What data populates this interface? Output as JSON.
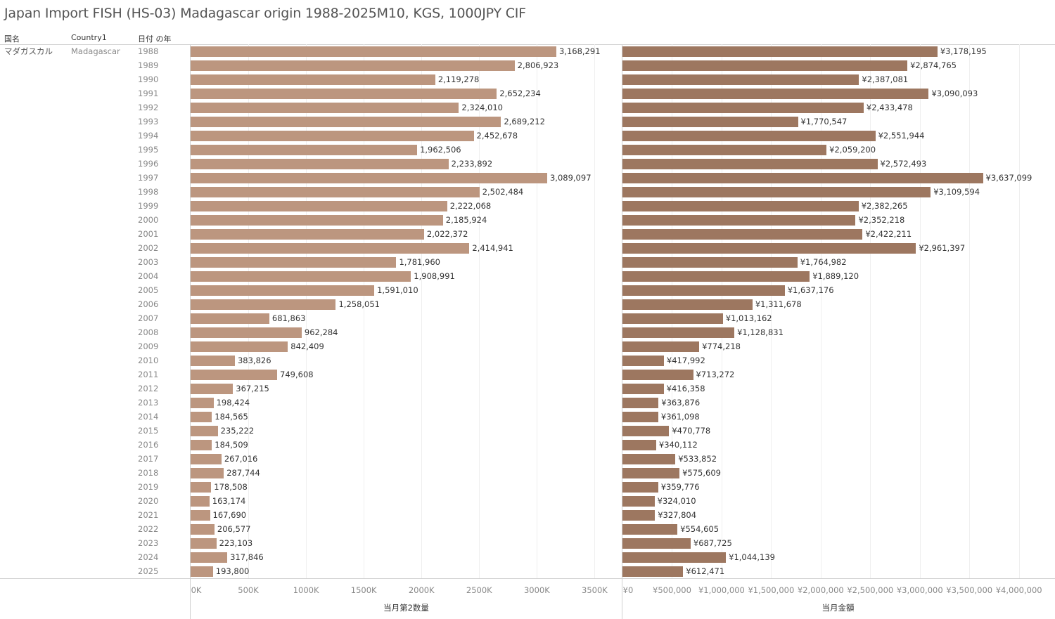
{
  "title": "Japan Import FISH (HS-03) Madagascar origin 1988-2025M10, KGS, 1000JPY CIF",
  "headers": {
    "country_jp": "国名",
    "country": "Country1",
    "year": "日付 の年"
  },
  "row_labels": {
    "country_jp": "マダガスカル",
    "country": "Madagascar"
  },
  "chart_data": [
    {
      "type": "bar",
      "orientation": "horizontal",
      "xlabel": "当月第2数量",
      "xlim": [
        0,
        3735000
      ],
      "ticks": [
        0,
        500000,
        1000000,
        1500000,
        2000000,
        2500000,
        3000000,
        3500000
      ],
      "tick_labels": [
        "0K",
        "500K",
        "1000K",
        "1500K",
        "2000K",
        "2500K",
        "3000K",
        "3500K"
      ],
      "value_prefix": "",
      "color": "#bc967f",
      "grid": true,
      "categories": [
        1988,
        1989,
        1990,
        1991,
        1992,
        1993,
        1994,
        1995,
        1996,
        1997,
        1998,
        1999,
        2000,
        2001,
        2002,
        2003,
        2004,
        2005,
        2006,
        2007,
        2008,
        2009,
        2010,
        2011,
        2012,
        2013,
        2014,
        2015,
        2016,
        2017,
        2018,
        2019,
        2020,
        2021,
        2022,
        2023,
        2024,
        2025
      ],
      "values": [
        3168291,
        2806923,
        2119278,
        2652234,
        2324010,
        2689212,
        2452678,
        1962506,
        2233892,
        3089097,
        2502484,
        2222068,
        2185924,
        2022372,
        2414941,
        1781960,
        1908991,
        1591010,
        1258051,
        681863,
        962284,
        842409,
        383826,
        749608,
        367215,
        198424,
        184565,
        235222,
        184509,
        267016,
        287744,
        178508,
        163174,
        167690,
        206577,
        223103,
        317846,
        193800
      ]
    },
    {
      "type": "bar",
      "orientation": "horizontal",
      "xlabel": "当月金額",
      "xlim": [
        0,
        4350000
      ],
      "ticks": [
        0,
        500000,
        1000000,
        1500000,
        2000000,
        2500000,
        3000000,
        3500000,
        4000000
      ],
      "tick_labels": [
        "¥0",
        "¥500,000",
        "¥1,000,000",
        "¥1,500,000",
        "¥2,000,000",
        "¥2,500,000",
        "¥3,000,000",
        "¥3,500,000",
        "¥4,000,000"
      ],
      "value_prefix": "¥",
      "color": "#9d7760",
      "grid": true,
      "categories": [
        1988,
        1989,
        1990,
        1991,
        1992,
        1993,
        1994,
        1995,
        1996,
        1997,
        1998,
        1999,
        2000,
        2001,
        2002,
        2003,
        2004,
        2005,
        2006,
        2007,
        2008,
        2009,
        2010,
        2011,
        2012,
        2013,
        2014,
        2015,
        2016,
        2017,
        2018,
        2019,
        2020,
        2021,
        2022,
        2023,
        2024,
        2025
      ],
      "values": [
        3178195,
        2874765,
        2387081,
        3090093,
        2433478,
        1770547,
        2551944,
        2059200,
        2572493,
        3637099,
        3109594,
        2382265,
        2352218,
        2422211,
        2961397,
        1764982,
        1889120,
        1637176,
        1311678,
        1013162,
        1128831,
        774218,
        417992,
        713272,
        416358,
        363876,
        361098,
        470778,
        340112,
        533852,
        575609,
        359776,
        324010,
        327804,
        554605,
        687725,
        1044139,
        612471
      ]
    }
  ]
}
